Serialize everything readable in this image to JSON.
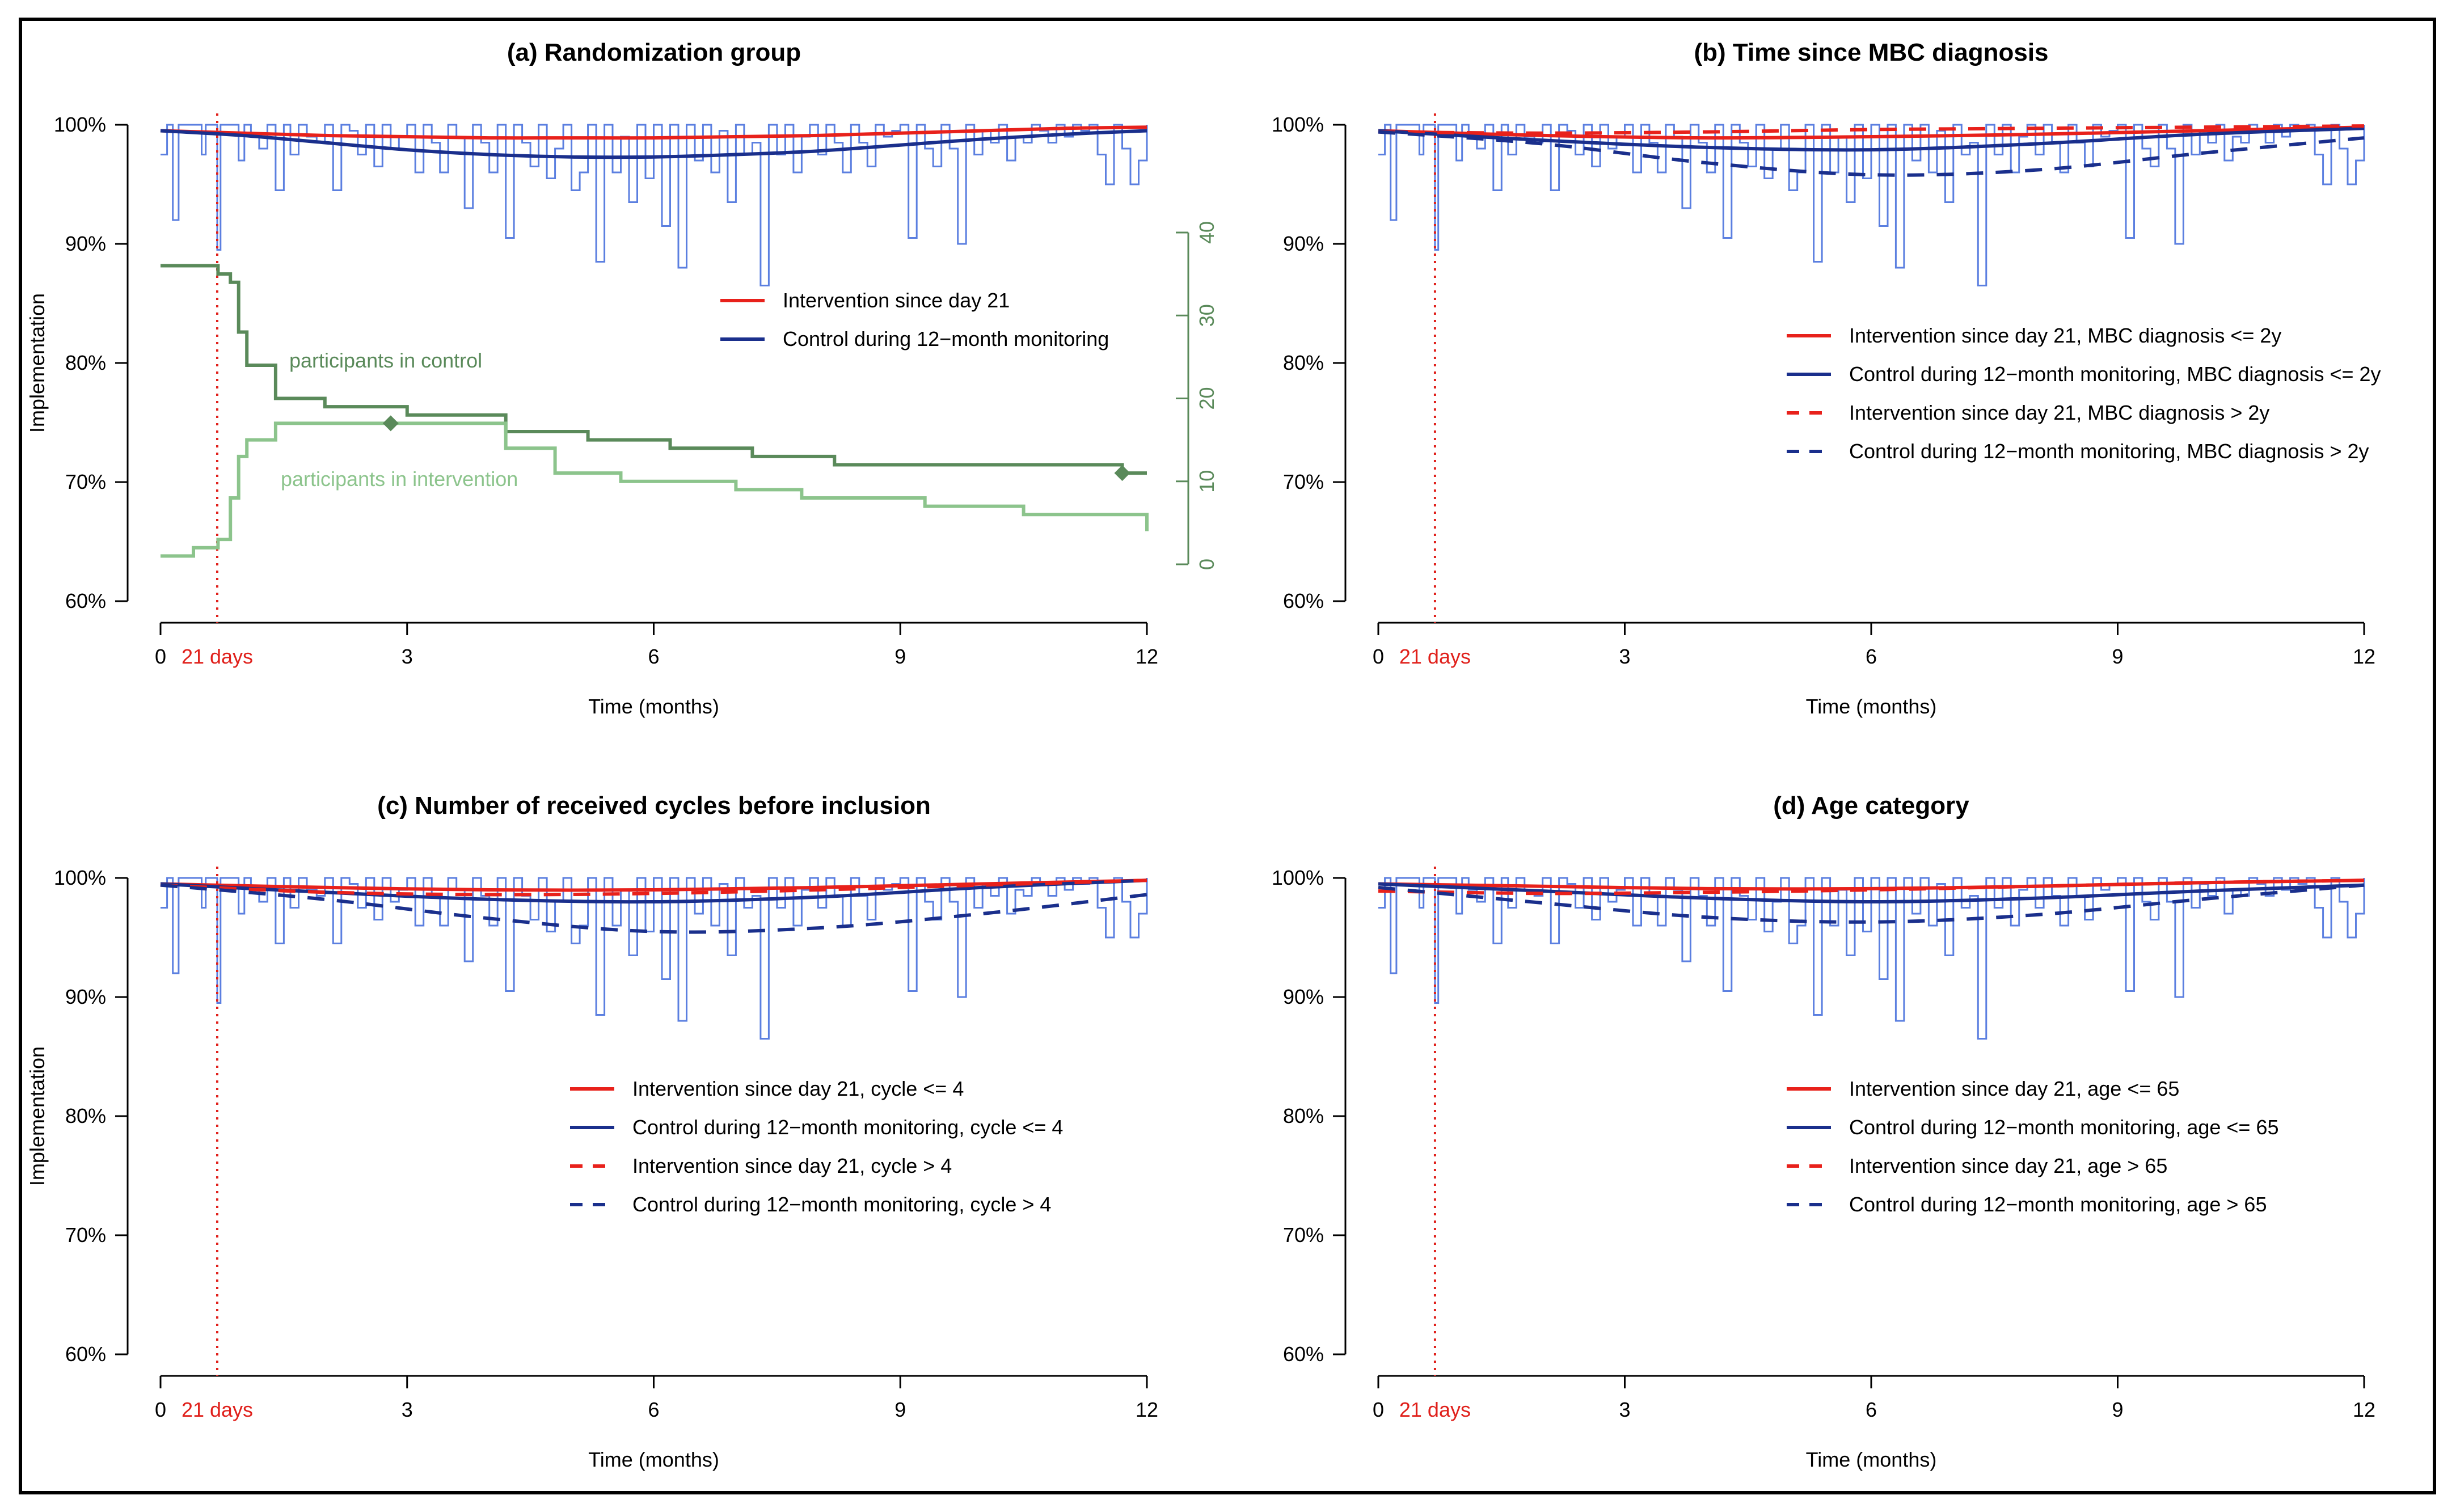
{
  "chart_data": [
    {
      "type": "line",
      "panel": "a",
      "title": "(a) Randomization group",
      "xlabel": "Time (months)",
      "ylabel": "Implementation",
      "xlim": [
        0,
        12
      ],
      "ylim": [
        60,
        100
      ],
      "x_ticks": [
        "0",
        "3",
        "6",
        "9",
        "12"
      ],
      "y_ticks": [
        "60%",
        "70%",
        "80%",
        "90%",
        "100%"
      ],
      "day21_label": "21 days",
      "day21_month": 0.69,
      "legend_position": "center-right",
      "series": [
        {
          "name": "Intervention since day 21",
          "color": "#e8211b",
          "dash": "solid",
          "x": [
            0,
            1,
            2,
            3,
            4,
            5,
            6,
            7,
            8,
            9,
            10,
            11,
            12
          ],
          "values": [
            99.5,
            99.3,
            99.1,
            99.0,
            98.9,
            98.9,
            98.9,
            99.0,
            99.1,
            99.3,
            99.5,
            99.7,
            99.8
          ]
        },
        {
          "name": "Control during 12−month monitoring",
          "color": "#1a2f8c",
          "dash": "solid",
          "x": [
            0,
            1,
            2,
            3,
            4,
            5,
            6,
            7,
            8,
            9,
            10,
            11,
            12
          ],
          "values": [
            99.5,
            99.1,
            98.5,
            97.9,
            97.5,
            97.3,
            97.3,
            97.5,
            97.8,
            98.3,
            98.8,
            99.2,
            99.5
          ]
        }
      ],
      "secondary_axis": {
        "ylim": [
          0,
          40
        ],
        "ticks": [
          "0",
          "10",
          "20",
          "30",
          "40"
        ],
        "series": [
          {
            "name": "participants in control",
            "color": "#5a8a5a",
            "x": [
              0,
              0.4,
              0.7,
              0.85,
              0.95,
              1.05,
              1.4,
              2.0,
              3.0,
              4.2,
              5.2,
              6.2,
              7.2,
              8.2,
              9.5,
              10.5,
              11.7,
              12
            ],
            "values": [
              36,
              36,
              35,
              34,
              28,
              24,
              20,
              19,
              18,
              16,
              15,
              14,
              13,
              12,
              12,
              12,
              11,
              11
            ]
          },
          {
            "name": "participants in intervention",
            "color": "#8cc48c",
            "x": [
              0,
              0.4,
              0.7,
              0.85,
              0.95,
              1.05,
              1.4,
              2.0,
              3.0,
              4.2,
              4.8,
              5.6,
              7.0,
              7.8,
              9.3,
              10.5,
              11.7,
              12
            ],
            "values": [
              1,
              2,
              3,
              8,
              13,
              15,
              17,
              17,
              17,
              14,
              11,
              10,
              9,
              8,
              7,
              6,
              6,
              4
            ]
          }
        ]
      }
    },
    {
      "type": "line",
      "panel": "b",
      "title": "(b) Time since MBC diagnosis",
      "xlabel": "Time (months)",
      "ylabel": "",
      "xlim": [
        0,
        12
      ],
      "ylim": [
        60,
        100
      ],
      "x_ticks": [
        "0",
        "3",
        "6",
        "9",
        "12"
      ],
      "y_ticks": [
        "60%",
        "70%",
        "80%",
        "90%",
        "100%"
      ],
      "day21_label": "21 days",
      "day21_month": 0.69,
      "legend_position": "center-right",
      "series": [
        {
          "name": "Intervention since day 21, MBC diagnosis <= 2y",
          "color": "#e8211b",
          "dash": "solid",
          "x": [
            0,
            2,
            4,
            6,
            8,
            10,
            12
          ],
          "values": [
            99.5,
            99.1,
            98.9,
            99.0,
            99.2,
            99.5,
            99.8
          ]
        },
        {
          "name": "Control during 12−month monitoring, MBC diagnosis <= 2y",
          "color": "#1a2f8c",
          "dash": "solid",
          "x": [
            0,
            2,
            4,
            6,
            8,
            10,
            12
          ],
          "values": [
            99.5,
            98.7,
            98.1,
            97.9,
            98.4,
            99.2,
            99.7
          ]
        },
        {
          "name": "Intervention since day 21, MBC diagnosis > 2y",
          "color": "#e8211b",
          "dash": "dashed",
          "x": [
            0,
            2,
            4,
            6,
            8,
            10,
            12
          ],
          "values": [
            99.4,
            99.3,
            99.4,
            99.6,
            99.7,
            99.8,
            99.9
          ]
        },
        {
          "name": "Control during 12−month monitoring, MBC diagnosis > 2y",
          "color": "#1a2f8c",
          "dash": "dashed",
          "x": [
            0,
            2,
            4,
            6,
            8,
            10,
            12
          ],
          "values": [
            99.4,
            98.4,
            96.8,
            95.8,
            96.2,
            97.6,
            98.9
          ]
        }
      ]
    },
    {
      "type": "line",
      "panel": "c",
      "title": "(c) Number of received cycles before inclusion",
      "xlabel": "Time (months)",
      "ylabel": "Implementation",
      "xlim": [
        0,
        12
      ],
      "ylim": [
        60,
        100
      ],
      "x_ticks": [
        "0",
        "3",
        "6",
        "9",
        "12"
      ],
      "y_ticks": [
        "60%",
        "70%",
        "80%",
        "90%",
        "100%"
      ],
      "day21_label": "21 days",
      "day21_month": 0.69,
      "legend_position": "center-right",
      "series": [
        {
          "name": "Intervention since day 21, cycle <= 4",
          "color": "#e8211b",
          "dash": "solid",
          "x": [
            0,
            2,
            4,
            6,
            8,
            10,
            12
          ],
          "values": [
            99.5,
            99.2,
            99.0,
            99.0,
            99.2,
            99.5,
            99.8
          ]
        },
        {
          "name": "Control during 12−month monitoring, cycle <= 4",
          "color": "#1a2f8c",
          "dash": "solid",
          "x": [
            0,
            2,
            4,
            6,
            8,
            10,
            12
          ],
          "values": [
            99.5,
            98.8,
            98.2,
            98.0,
            98.4,
            99.2,
            99.8
          ]
        },
        {
          "name": "Intervention since day 21, cycle > 4",
          "color": "#e8211b",
          "dash": "dashed",
          "x": [
            0,
            2,
            4,
            6,
            8,
            10,
            12
          ],
          "values": [
            99.4,
            98.8,
            98.6,
            98.7,
            99.0,
            99.4,
            99.8
          ]
        },
        {
          "name": "Control during 12−month monitoring, cycle > 4",
          "color": "#1a2f8c",
          "dash": "dashed",
          "x": [
            0,
            2,
            4,
            6,
            8,
            10,
            12
          ],
          "values": [
            99.4,
            98.2,
            96.6,
            95.5,
            95.8,
            97.0,
            98.6
          ]
        }
      ]
    },
    {
      "type": "line",
      "panel": "d",
      "title": "(d) Age category",
      "xlabel": "Time (months)",
      "ylabel": "",
      "xlim": [
        0,
        12
      ],
      "ylim": [
        60,
        100
      ],
      "x_ticks": [
        "0",
        "3",
        "6",
        "9",
        "12"
      ],
      "y_ticks": [
        "60%",
        "70%",
        "80%",
        "90%",
        "100%"
      ],
      "day21_label": "21 days",
      "day21_month": 0.69,
      "legend_position": "center-right",
      "series": [
        {
          "name": "Intervention since day 21, age <= 65",
          "color": "#e8211b",
          "dash": "solid",
          "x": [
            0,
            2,
            4,
            6,
            8,
            10,
            12
          ],
          "values": [
            99.5,
            99.3,
            99.1,
            99.1,
            99.3,
            99.6,
            99.8
          ]
        },
        {
          "name": "Control during 12−month monitoring, age <= 65",
          "color": "#1a2f8c",
          "dash": "solid",
          "x": [
            0,
            2,
            4,
            6,
            8,
            10,
            12
          ],
          "values": [
            99.5,
            98.9,
            98.3,
            98.0,
            98.3,
            98.9,
            99.4
          ]
        },
        {
          "name": "Intervention since day 21, age > 65",
          "color": "#e8211b",
          "dash": "dashed",
          "x": [
            0,
            2,
            4,
            6,
            8,
            10,
            12
          ],
          "values": [
            98.9,
            98.7,
            98.8,
            99.0,
            99.3,
            99.6,
            99.8
          ]
        },
        {
          "name": "Control during 12−month monitoring, age > 65",
          "color": "#1a2f8c",
          "dash": "dashed",
          "x": [
            0,
            2,
            4,
            6,
            8,
            10,
            12
          ],
          "values": [
            99.2,
            97.9,
            96.7,
            96.3,
            96.9,
            98.2,
            99.4
          ]
        }
      ]
    }
  ],
  "observed": {
    "color": "#5b7fe0",
    "x": [
      0.0,
      0.08,
      0.15,
      0.22,
      0.3,
      0.36,
      0.42,
      0.5,
      0.55,
      0.6,
      0.66,
      0.69,
      0.73,
      0.8,
      0.88,
      0.95,
      1.02,
      1.1,
      1.2,
      1.3,
      1.4,
      1.5,
      1.58,
      1.68,
      1.78,
      1.9,
      2.0,
      2.1,
      2.2,
      2.3,
      2.4,
      2.5,
      2.6,
      2.7,
      2.8,
      2.9,
      3.0,
      3.1,
      3.2,
      3.3,
      3.4,
      3.5,
      3.6,
      3.7,
      3.8,
      3.9,
      4.0,
      4.1,
      4.2,
      4.3,
      4.4,
      4.5,
      4.6,
      4.7,
      4.8,
      4.9,
      5.0,
      5.1,
      5.2,
      5.3,
      5.4,
      5.5,
      5.6,
      5.7,
      5.8,
      5.9,
      6.0,
      6.1,
      6.2,
      6.3,
      6.4,
      6.5,
      6.6,
      6.7,
      6.8,
      6.9,
      7.0,
      7.1,
      7.2,
      7.3,
      7.4,
      7.5,
      7.6,
      7.7,
      7.8,
      7.9,
      8.0,
      8.1,
      8.2,
      8.3,
      8.4,
      8.5,
      8.6,
      8.7,
      8.8,
      8.9,
      9.0,
      9.1,
      9.2,
      9.3,
      9.4,
      9.5,
      9.6,
      9.7,
      9.8,
      9.9,
      10.0,
      10.1,
      10.2,
      10.3,
      10.4,
      10.5,
      10.6,
      10.7,
      10.8,
      10.9,
      11.0,
      11.1,
      11.2,
      11.3,
      11.4,
      11.5,
      11.6,
      11.7,
      11.8,
      11.9,
      12.0
    ],
    "values": [
      97.5,
      100,
      92,
      100,
      100,
      100,
      100,
      97.5,
      100,
      100,
      100,
      89.5,
      100,
      100,
      100,
      97,
      100,
      99,
      98,
      100,
      94.5,
      100,
      97.5,
      100,
      99,
      98.5,
      100,
      94.5,
      100,
      99.5,
      97.5,
      100,
      96.5,
      100,
      98,
      99,
      100,
      96,
      100,
      98.5,
      96,
      100,
      99,
      93,
      100,
      98.5,
      96,
      100,
      90.5,
      100,
      98.5,
      96.5,
      100,
      95.5,
      98,
      100,
      94.5,
      96,
      100,
      88.5,
      100,
      96,
      99,
      93.5,
      100,
      95.5,
      100,
      91.5,
      100,
      88,
      100,
      97,
      100,
      96,
      99.5,
      93.5,
      100,
      97.5,
      98.5,
      86.5,
      100,
      97.5,
      100,
      96,
      99,
      100,
      97.5,
      100,
      98.5,
      96,
      100,
      98.5,
      96.5,
      100,
      99,
      99.5,
      100,
      90.5,
      100,
      98,
      96.5,
      100,
      98,
      90,
      100,
      97.5,
      99.5,
      98.5,
      100,
      97,
      99,
      98.5,
      100,
      99.5,
      98.5,
      100,
      99,
      100,
      99.5,
      100,
      97.5,
      95,
      100,
      98,
      95,
      97,
      100
    ]
  },
  "annotations": {
    "control_label": "participants in control",
    "intervention_label": "participants in intervention"
  }
}
